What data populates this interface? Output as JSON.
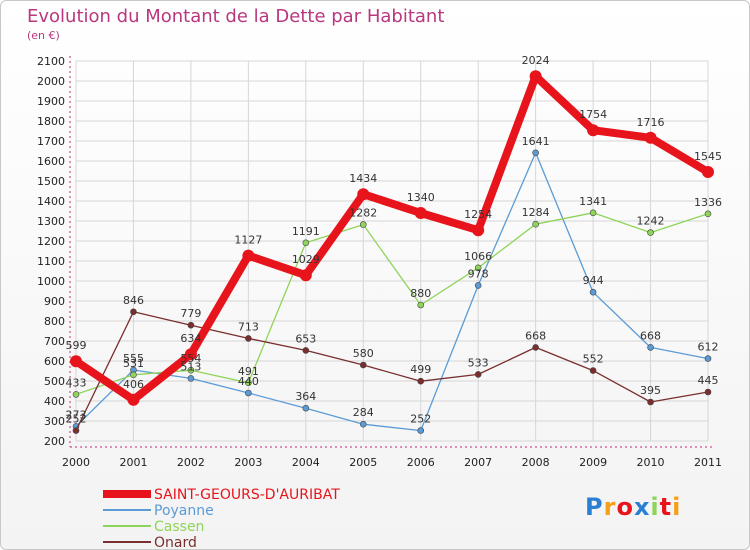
{
  "header": {
    "title": "Evolution du Montant de la Dette par Habitant",
    "subtitle": "(en €)"
  },
  "logo": {
    "text": "Proxiti"
  },
  "colors": {
    "title": "#b8377f",
    "grid": "#d6d6d6",
    "SAINT-GEOURS-D'AURIBAT": "#e8141b",
    "Poyanne": "#5b9bd5",
    "Cassen": "#8fd45a",
    "Onard": "#7a2e2e"
  },
  "chart_data": {
    "type": "line",
    "title": "Evolution du Montant de la Dette par Habitant",
    "subtitle": "(en €)",
    "xlabel": "",
    "ylabel": "",
    "x": [
      "2000",
      "2001",
      "2002",
      "2003",
      "2004",
      "2005",
      "2006",
      "2007",
      "2008",
      "2009",
      "2010",
      "2011"
    ],
    "ylim": [
      200,
      2100
    ],
    "yticks": [
      200,
      300,
      400,
      500,
      600,
      700,
      800,
      900,
      1000,
      1100,
      1200,
      1300,
      1400,
      1500,
      1600,
      1700,
      1800,
      1900,
      2000,
      2100
    ],
    "grid": true,
    "legend_position": "bottom-left",
    "series": [
      {
        "name": "SAINT-GEOURS-D'AURIBAT",
        "values": [
          599,
          406,
          634,
          1127,
          1029,
          1434,
          1340,
          1254,
          2024,
          1754,
          1716,
          1545
        ]
      },
      {
        "name": "Poyanne",
        "values": [
          273,
          555,
          513,
          440,
          364,
          284,
          252,
          978,
          1641,
          944,
          668,
          612
        ]
      },
      {
        "name": "Cassen",
        "values": [
          433,
          531,
          554,
          491,
          1191,
          1282,
          880,
          1066,
          1284,
          1341,
          1242,
          1336
        ]
      },
      {
        "name": "Onard",
        "values": [
          252,
          846,
          779,
          713,
          653,
          580,
          499,
          533,
          668,
          552,
          395,
          445
        ]
      }
    ]
  }
}
